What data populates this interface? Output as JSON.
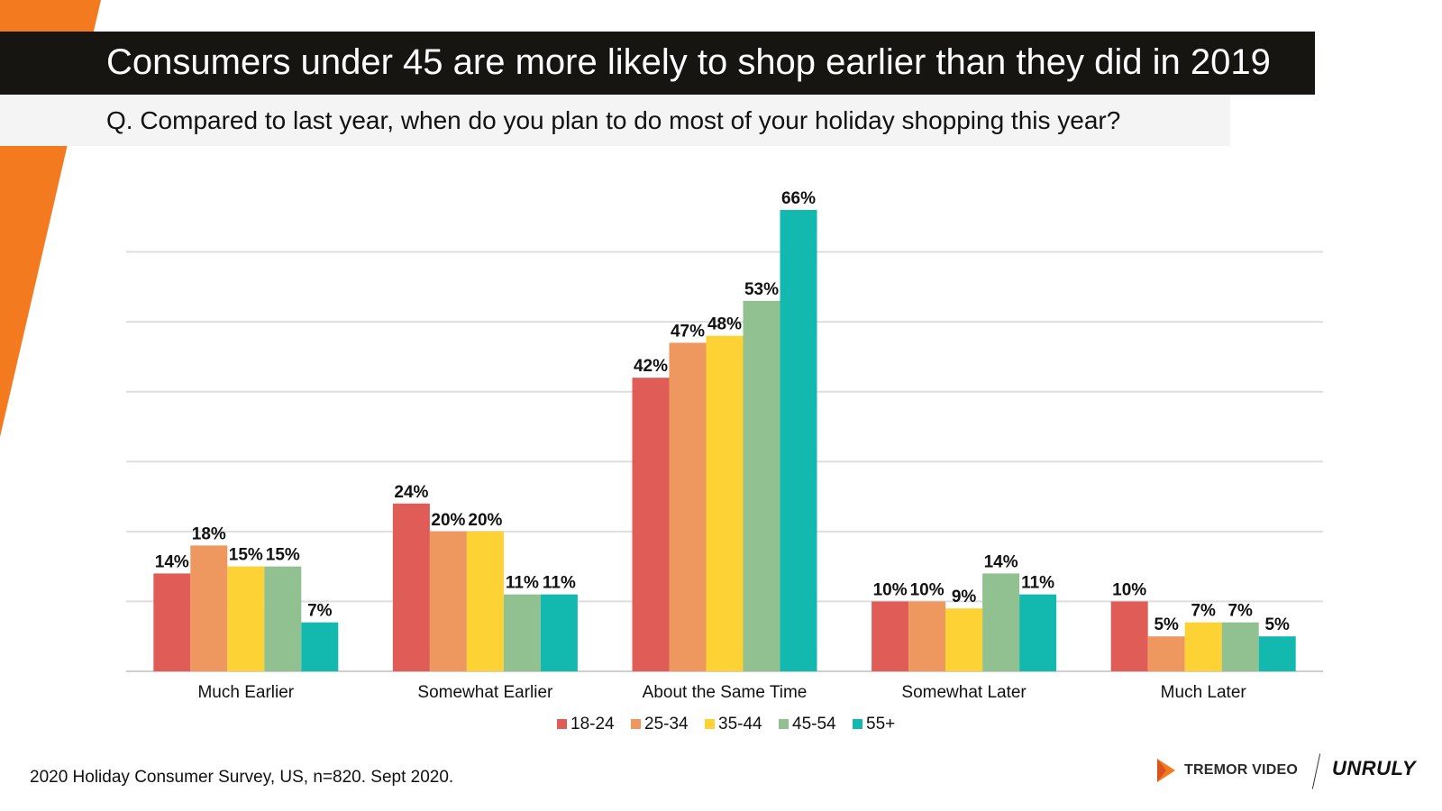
{
  "header": {
    "title": "Consumers under 45 are more likely to shop earlier than they did in 2019",
    "subtitle": "Q. Compared to last year, when do you plan to do most of your holiday shopping this year?"
  },
  "footer": {
    "source": "2020 Holiday Consumer Survey, US, n=820. Sept 2020.",
    "logo_left": "TREMOR VIDEO",
    "logo_right": "UNRULY"
  },
  "colors": {
    "accent_orange": "#F47A20",
    "title_bar": "#171512",
    "series": [
      "#E05C57",
      "#EE9860",
      "#FDD235",
      "#91C190",
      "#13B8AE"
    ]
  },
  "chart_data": {
    "type": "bar",
    "title": "",
    "xlabel": "",
    "ylabel": "",
    "ylim": [
      0,
      70
    ],
    "grid": true,
    "legend_position": "bottom",
    "categories": [
      "Much Earlier",
      "Somewhat Earlier",
      "About the Same Time",
      "Somewhat Later",
      "Much Later"
    ],
    "series": [
      {
        "name": "18-24",
        "values": [
          14,
          24,
          42,
          10,
          10
        ],
        "labels": [
          "14%",
          "24%",
          "42%",
          "10%",
          "10%"
        ]
      },
      {
        "name": "25-34",
        "values": [
          18,
          20,
          47,
          10,
          5
        ],
        "labels": [
          "18%",
          "20%",
          "47%",
          "10%",
          "5%"
        ]
      },
      {
        "name": "35-44",
        "values": [
          15,
          20,
          48,
          9,
          7
        ],
        "labels": [
          "15%",
          "20%",
          "48%",
          "9%",
          "7%"
        ]
      },
      {
        "name": "45-54",
        "values": [
          15,
          11,
          53,
          14,
          7
        ],
        "labels": [
          "15%",
          "11%",
          "53%",
          "14%",
          "7%"
        ]
      },
      {
        "name": "55+",
        "values": [
          7,
          11,
          66,
          11,
          5
        ],
        "labels": [
          "7%",
          "11%",
          "66%",
          "11%",
          "5%"
        ]
      }
    ]
  }
}
